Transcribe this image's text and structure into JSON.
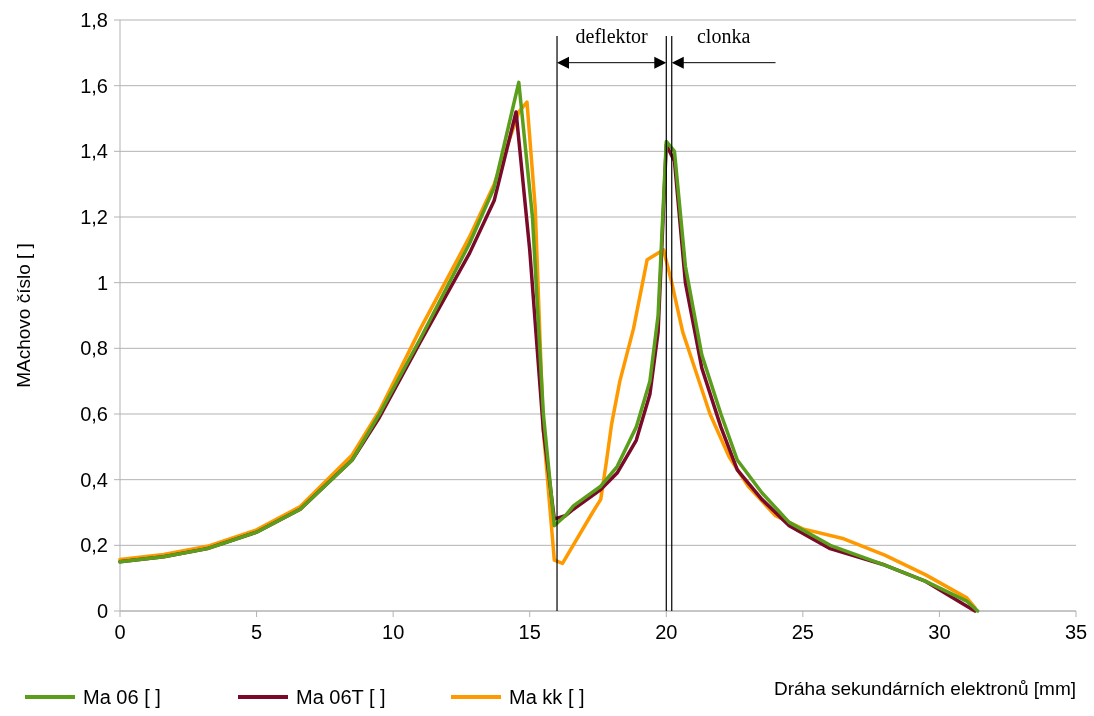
{
  "chart_data": {
    "type": "line",
    "xlabel": "Dráha sekundárních elektronů [mm]",
    "ylabel": "MAchovo číslo [ ]",
    "xlim": [
      0,
      35
    ],
    "xticks": [
      0,
      5,
      10,
      15,
      20,
      25,
      30,
      35
    ],
    "ylim": [
      0,
      1.8
    ],
    "yticks": [
      0,
      {
        "value": 0.2,
        "label": "0,2"
      },
      {
        "value": 0.4,
        "label": "0,4"
      },
      {
        "value": 0.6,
        "label": "0,6"
      },
      {
        "value": 0.8,
        "label": "0,8"
      },
      1,
      {
        "value": 1.2,
        "label": "1,2"
      },
      {
        "value": 1.4,
        "label": "1,4"
      },
      {
        "value": 1.6,
        "label": "1,6"
      },
      {
        "value": 1.8,
        "label": "1,8"
      }
    ],
    "grid": "y",
    "legend": "bottom left",
    "marker": "none",
    "line_style": "solid",
    "series": [
      {
        "name": "Ma 06 [ ]",
        "color": "#5a9e1c",
        "x": [
          0,
          1.6,
          3.2,
          5,
          6.6,
          8.5,
          9.5,
          11,
          12.8,
          13.7,
          14.6,
          15.1,
          15.5,
          15.9,
          16.3,
          16.6,
          17.6,
          18.2,
          18.9,
          19.4,
          19.7,
          20,
          20.3,
          20.7,
          21.3,
          22,
          22.6,
          23.5,
          24.5,
          26,
          28,
          29.5,
          31,
          31.4
        ],
        "values": [
          0.15,
          0.165,
          0.19,
          0.24,
          0.31,
          0.46,
          0.6,
          0.83,
          1.12,
          1.29,
          1.61,
          1.2,
          0.6,
          0.26,
          0.29,
          0.32,
          0.38,
          0.44,
          0.56,
          0.7,
          0.9,
          1.43,
          1.4,
          1.05,
          0.78,
          0.6,
          0.46,
          0.36,
          0.27,
          0.2,
          0.14,
          0.09,
          0.03,
          0
        ]
      },
      {
        "name": "Ma 06T [ ]",
        "color": "#7b0a2a",
        "x": [
          0,
          1.6,
          3.2,
          5,
          6.6,
          8.5,
          9.5,
          11,
          12.8,
          13.7,
          14.5,
          15,
          15.5,
          15.9,
          16.3,
          16.6,
          17.6,
          18.2,
          18.9,
          19.4,
          19.7,
          20,
          20.3,
          20.7,
          21.3,
          22,
          22.6,
          23.5,
          24.5,
          26,
          28,
          29.5,
          30.9,
          31.3
        ],
        "values": [
          0.15,
          0.165,
          0.19,
          0.24,
          0.31,
          0.46,
          0.59,
          0.82,
          1.09,
          1.25,
          1.52,
          1.1,
          0.55,
          0.28,
          0.29,
          0.31,
          0.37,
          0.42,
          0.52,
          0.66,
          0.85,
          1.42,
          1.37,
          1.0,
          0.74,
          0.56,
          0.43,
          0.34,
          0.26,
          0.19,
          0.14,
          0.09,
          0.02,
          0
        ]
      },
      {
        "name": "Ma kk [ ]",
        "color": "#ff9900",
        "x": [
          0,
          1.6,
          3.2,
          5,
          6.6,
          8.5,
          9.5,
          11,
          12.8,
          13.7,
          14.6,
          14.9,
          15.2,
          15.5,
          15.9,
          16.2,
          17.3,
          17.6,
          17.8,
          18,
          18.3,
          18.8,
          19.3,
          19.9,
          20.2,
          20.6,
          21,
          21.6,
          22.3,
          23,
          24,
          25,
          26.5,
          28,
          29.5,
          31,
          31.3
        ],
        "values": [
          0.157,
          0.172,
          0.197,
          0.247,
          0.318,
          0.475,
          0.61,
          0.86,
          1.14,
          1.3,
          1.52,
          1.55,
          1.23,
          0.55,
          0.155,
          0.145,
          0.3,
          0.34,
          0.45,
          0.57,
          0.7,
          0.86,
          1.07,
          1.1,
          1.0,
          0.85,
          0.75,
          0.6,
          0.47,
          0.38,
          0.29,
          0.25,
          0.22,
          0.17,
          0.11,
          0.04,
          0.01
        ]
      }
    ],
    "ref_lines": [
      {
        "axis": "x",
        "value": 16,
        "color": "#000000"
      },
      {
        "axis": "x",
        "value": 20,
        "color": "#000000"
      },
      {
        "axis": "x",
        "value": 20.2,
        "color": "#000000"
      }
    ],
    "annotations": [
      "deflektor",
      "clonka"
    ]
  }
}
